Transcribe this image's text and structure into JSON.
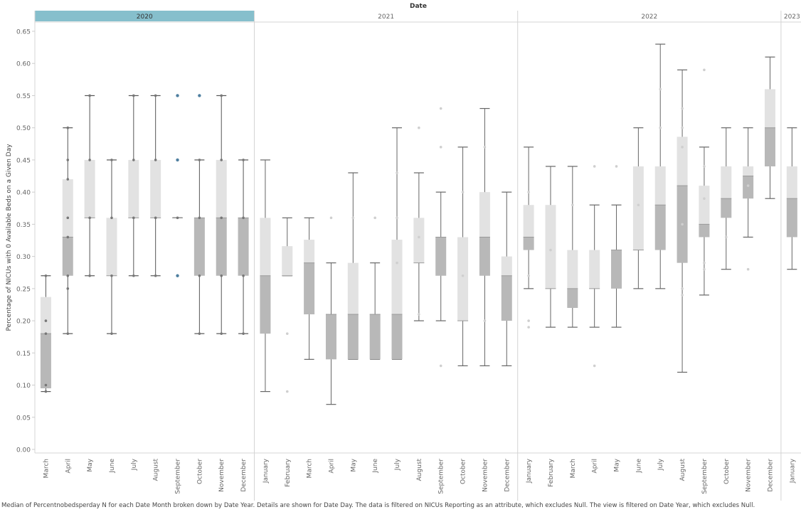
{
  "chart_data": {
    "type": "box",
    "title": "",
    "top_header": "Date",
    "ylabel": "Percentage of NICUs with 0 Available Beds on a Given Day",
    "ylim": [
      0,
      0.65
    ],
    "yticks": [
      0.0,
      0.05,
      0.1,
      0.15,
      0.2,
      0.25,
      0.3,
      0.35,
      0.4,
      0.45,
      0.5,
      0.55,
      0.6,
      0.65
    ],
    "highlight_color": "#86BFCC",
    "years": [
      {
        "year": "2020",
        "highlighted": true,
        "months": [
          {
            "month": "March",
            "whisker_low": 0.09,
            "q1": 0.095,
            "median": 0.18,
            "q3": 0.237,
            "whisker_high": 0.27,
            "points": [
              0.09,
              0.1,
              0.18,
              0.2,
              0.27
            ]
          },
          {
            "month": "April",
            "whisker_low": 0.18,
            "q1": 0.27,
            "median": 0.33,
            "q3": 0.42,
            "whisker_high": 0.5,
            "points": [
              0.18,
              0.25,
              0.27,
              0.33,
              0.36,
              0.42,
              0.45,
              0.5
            ]
          },
          {
            "month": "May",
            "whisker_low": 0.27,
            "q1": 0.36,
            "median": 0.36,
            "q3": 0.45,
            "whisker_high": 0.55,
            "points": [
              0.27,
              0.36,
              0.45,
              0.55
            ]
          },
          {
            "month": "June",
            "whisker_low": 0.18,
            "q1": 0.27,
            "median": 0.27,
            "q3": 0.36,
            "whisker_high": 0.45,
            "points": [
              0.18,
              0.27,
              0.36,
              0.45
            ]
          },
          {
            "month": "July",
            "whisker_low": 0.27,
            "q1": 0.36,
            "median": 0.36,
            "q3": 0.45,
            "whisker_high": 0.55,
            "points": [
              0.27,
              0.36,
              0.45,
              0.55
            ]
          },
          {
            "month": "August",
            "whisker_low": 0.27,
            "q1": 0.36,
            "median": 0.36,
            "q3": 0.45,
            "whisker_high": 0.55,
            "points": [
              0.27,
              0.36,
              0.45,
              0.55
            ]
          },
          {
            "month": "September",
            "whisker_low": 0.36,
            "q1": 0.36,
            "median": 0.36,
            "q3": 0.36,
            "whisker_high": 0.36,
            "points": [
              0.27,
              0.36,
              0.45,
              0.55
            ],
            "outliers": [
              0.27,
              0.45,
              0.55
            ]
          },
          {
            "month": "October",
            "whisker_low": 0.18,
            "q1": 0.27,
            "median": 0.36,
            "q3": 0.36,
            "whisker_high": 0.45,
            "points": [
              0.18,
              0.27,
              0.36,
              0.45
            ],
            "outliers": [
              0.55
            ]
          },
          {
            "month": "November",
            "whisker_low": 0.18,
            "q1": 0.27,
            "median": 0.36,
            "q3": 0.45,
            "whisker_high": 0.55,
            "points": [
              0.18,
              0.27,
              0.36,
              0.45,
              0.55
            ]
          },
          {
            "month": "December",
            "whisker_low": 0.18,
            "q1": 0.27,
            "median": 0.36,
            "q3": 0.36,
            "whisker_high": 0.45,
            "points": [
              0.18,
              0.27,
              0.36,
              0.45
            ]
          }
        ]
      },
      {
        "year": "2021",
        "highlighted": false,
        "months": [
          {
            "month": "January",
            "whisker_low": 0.09,
            "q1": 0.18,
            "median": 0.27,
            "q3": 0.36,
            "whisker_high": 0.45,
            "points": []
          },
          {
            "month": "February",
            "whisker_low": 0.27,
            "q1": 0.27,
            "median": 0.27,
            "q3": 0.316,
            "whisker_high": 0.36,
            "points": [
              0.09,
              0.18
            ]
          },
          {
            "month": "March",
            "whisker_low": 0.14,
            "q1": 0.21,
            "median": 0.29,
            "q3": 0.326,
            "whisker_high": 0.36,
            "points": []
          },
          {
            "month": "April",
            "whisker_low": 0.07,
            "q1": 0.14,
            "median": 0.21,
            "q3": 0.21,
            "whisker_high": 0.29,
            "points": [
              0.36
            ]
          },
          {
            "month": "May",
            "whisker_low": 0.14,
            "q1": 0.14,
            "median": 0.21,
            "q3": 0.29,
            "whisker_high": 0.43,
            "points": [
              0.36
            ]
          },
          {
            "month": "June",
            "whisker_low": 0.14,
            "q1": 0.14,
            "median": 0.21,
            "q3": 0.21,
            "whisker_high": 0.29,
            "points": [
              0.36
            ]
          },
          {
            "month": "July",
            "whisker_low": 0.14,
            "q1": 0.14,
            "median": 0.21,
            "q3": 0.326,
            "whisker_high": 0.5,
            "points": [
              0.29,
              0.36,
              0.43
            ]
          },
          {
            "month": "August",
            "whisker_low": 0.2,
            "q1": 0.29,
            "median": 0.29,
            "q3": 0.36,
            "whisker_high": 0.43,
            "points": [
              0.21,
              0.33,
              0.5
            ]
          },
          {
            "month": "September",
            "whisker_low": 0.2,
            "q1": 0.27,
            "median": 0.33,
            "q3": 0.33,
            "whisker_high": 0.4,
            "points": [
              0.13,
              0.47,
              0.53
            ]
          },
          {
            "month": "October",
            "whisker_low": 0.13,
            "q1": 0.2,
            "median": 0.2,
            "q3": 0.33,
            "whisker_high": 0.47,
            "points": [
              0.27,
              0.4
            ]
          },
          {
            "month": "November",
            "whisker_low": 0.13,
            "q1": 0.27,
            "median": 0.33,
            "q3": 0.4,
            "whisker_high": 0.53,
            "points": [
              0.2,
              0.47
            ]
          },
          {
            "month": "December",
            "whisker_low": 0.13,
            "q1": 0.2,
            "median": 0.27,
            "q3": 0.3,
            "whisker_high": 0.4,
            "points": []
          }
        ]
      },
      {
        "year": "2022",
        "highlighted": false,
        "months": [
          {
            "month": "January",
            "whisker_low": 0.25,
            "q1": 0.31,
            "median": 0.33,
            "q3": 0.38,
            "whisker_high": 0.47,
            "points": [
              0.19,
              0.2,
              0.27,
              0.4
            ]
          },
          {
            "month": "February",
            "whisker_low": 0.19,
            "q1": 0.25,
            "median": 0.25,
            "q3": 0.38,
            "whisker_high": 0.44,
            "points": [
              0.31
            ]
          },
          {
            "month": "March",
            "whisker_low": 0.19,
            "q1": 0.22,
            "median": 0.25,
            "q3": 0.31,
            "whisker_high": 0.44,
            "points": [
              0.38
            ]
          },
          {
            "month": "April",
            "whisker_low": 0.19,
            "q1": 0.25,
            "median": 0.25,
            "q3": 0.31,
            "whisker_high": 0.38,
            "points": [
              0.13,
              0.44
            ]
          },
          {
            "month": "May",
            "whisker_low": 0.19,
            "q1": 0.25,
            "median": 0.31,
            "q3": 0.31,
            "whisker_high": 0.38,
            "points": [
              0.44
            ]
          },
          {
            "month": "June",
            "whisker_low": 0.25,
            "q1": 0.31,
            "median": 0.31,
            "q3": 0.44,
            "whisker_high": 0.5,
            "points": [
              0.38
            ]
          },
          {
            "month": "July",
            "whisker_low": 0.25,
            "q1": 0.31,
            "median": 0.38,
            "q3": 0.44,
            "whisker_high": 0.63,
            "points": [
              0.5,
              0.56
            ]
          },
          {
            "month": "August",
            "whisker_low": 0.12,
            "q1": 0.29,
            "median": 0.41,
            "q3": 0.486,
            "whisker_high": 0.59,
            "points": [
              0.24,
              0.25,
              0.35,
              0.47,
              0.5,
              0.53
            ]
          },
          {
            "month": "September",
            "whisker_low": 0.24,
            "q1": 0.33,
            "median": 0.35,
            "q3": 0.41,
            "whisker_high": 0.47,
            "points": [
              0.28,
              0.29,
              0.39,
              0.44,
              0.59
            ]
          },
          {
            "month": "October",
            "whisker_low": 0.28,
            "q1": 0.36,
            "median": 0.39,
            "q3": 0.44,
            "whisker_high": 0.5,
            "points": [
              0.33
            ]
          },
          {
            "month": "November",
            "whisker_low": 0.33,
            "q1": 0.39,
            "median": 0.425,
            "q3": 0.44,
            "whisker_high": 0.5,
            "points": [
              0.28,
              0.41
            ]
          },
          {
            "month": "December",
            "whisker_low": 0.39,
            "q1": 0.44,
            "median": 0.5,
            "q3": 0.56,
            "whisker_high": 0.61,
            "points": []
          }
        ]
      },
      {
        "year": "2023",
        "highlighted": false,
        "months": [
          {
            "month": "January",
            "whisker_low": 0.28,
            "q1": 0.33,
            "median": 0.39,
            "q3": 0.44,
            "whisker_high": 0.5,
            "points": []
          }
        ]
      }
    ],
    "footnote": "Median of Percentnobedsperday N for each Date Month broken down by Date Year.  Details are shown for Date Day. The data is filtered on NICUs Reporting as an attribute, which excludes Null. The view is filtered on Date Year, which excludes Null."
  }
}
